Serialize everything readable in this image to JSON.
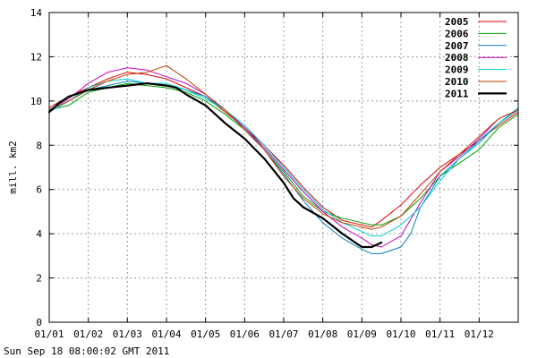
{
  "chart_data": {
    "type": "line",
    "title": "",
    "ylabel": "mill. km2",
    "xlabel": "",
    "ylim": [
      0,
      14
    ],
    "xlim": [
      1,
      13
    ],
    "yticks": [
      0,
      2,
      4,
      6,
      8,
      10,
      12,
      14
    ],
    "xticks": [
      1,
      2,
      3,
      4,
      5,
      6,
      7,
      8,
      9,
      10,
      11,
      12
    ],
    "xtick_labels": [
      "01/01",
      "01/02",
      "01/03",
      "01/04",
      "01/05",
      "01/06",
      "01/07",
      "01/08",
      "01/09",
      "01/10",
      "01/11",
      "01/12"
    ],
    "grid": true,
    "legend_position": "top-right",
    "series": [
      {
        "name": "2005",
        "color": "#e00000",
        "width": 1,
        "x": [
          1,
          1.5,
          2,
          2.5,
          3,
          3.5,
          4,
          4.5,
          5,
          5.5,
          6,
          6.5,
          7,
          7.5,
          8,
          8.5,
          9,
          9.25,
          9.5,
          10,
          10.5,
          11,
          11.5,
          12,
          12.5,
          13
        ],
        "y": [
          9.7,
          10.2,
          10.6,
          11.0,
          11.3,
          11.2,
          11.0,
          10.6,
          10.2,
          9.5,
          8.8,
          8.0,
          7.1,
          6.1,
          5.2,
          4.6,
          4.4,
          4.3,
          4.6,
          5.3,
          6.2,
          7.0,
          7.6,
          8.2,
          8.9,
          9.5
        ]
      },
      {
        "name": "2006",
        "color": "#00a000",
        "width": 1,
        "x": [
          1,
          1.5,
          2,
          2.5,
          3,
          3.5,
          4,
          4.5,
          5,
          5.5,
          6,
          6.5,
          7,
          7.5,
          8,
          8.5,
          9,
          9.25,
          9.5,
          10,
          10.5,
          11,
          11.5,
          12,
          12.5,
          13
        ],
        "y": [
          9.6,
          9.8,
          10.4,
          10.6,
          10.8,
          10.7,
          10.6,
          10.4,
          10.0,
          9.4,
          8.7,
          7.8,
          6.8,
          5.7,
          5.0,
          4.7,
          4.5,
          4.4,
          4.4,
          4.8,
          5.6,
          6.6,
          7.2,
          7.8,
          8.8,
          9.4
        ]
      },
      {
        "name": "2007",
        "color": "#0080c0",
        "width": 1,
        "x": [
          1,
          1.5,
          2,
          2.5,
          3,
          3.5,
          4,
          4.5,
          5,
          5.5,
          6,
          6.5,
          7,
          7.5,
          8,
          8.5,
          9,
          9.25,
          9.5,
          10,
          10.25,
          10.5,
          11,
          11.5,
          12,
          12.5,
          13
        ],
        "y": [
          9.5,
          10.0,
          10.5,
          10.7,
          10.9,
          10.8,
          10.7,
          10.5,
          10.2,
          9.6,
          8.8,
          7.8,
          6.7,
          5.5,
          4.5,
          3.8,
          3.3,
          3.1,
          3.1,
          3.4,
          4.0,
          5.2,
          6.6,
          7.4,
          8.2,
          9.0,
          9.6
        ]
      },
      {
        "name": "2008",
        "color": "#c000c0",
        "width": 1,
        "x": [
          1,
          1.5,
          2,
          2.5,
          3,
          3.5,
          4,
          4.5,
          5,
          5.5,
          6,
          6.5,
          7,
          7.5,
          8,
          8.5,
          9,
          9.25,
          9.5,
          10,
          10.5,
          11,
          11.5,
          12,
          12.5,
          13
        ],
        "y": [
          9.6,
          10.1,
          10.8,
          11.3,
          11.5,
          11.4,
          11.1,
          10.8,
          10.3,
          9.6,
          8.8,
          7.9,
          6.9,
          5.9,
          5.0,
          4.3,
          3.8,
          3.5,
          3.4,
          3.9,
          5.4,
          6.8,
          7.5,
          8.3,
          9.2,
          9.6
        ]
      },
      {
        "name": "2009",
        "color": "#00d0d0",
        "width": 1,
        "x": [
          1,
          1.5,
          2,
          2.5,
          3,
          3.5,
          4,
          4.5,
          5,
          5.5,
          6,
          6.5,
          7,
          7.5,
          8,
          8.5,
          9,
          9.25,
          9.5,
          10,
          10.5,
          11,
          11.5,
          12,
          12.5,
          13
        ],
        "y": [
          9.5,
          10.0,
          10.6,
          10.9,
          11.0,
          10.8,
          10.8,
          10.5,
          10.1,
          9.6,
          8.9,
          8.0,
          7.0,
          6.0,
          5.1,
          4.5,
          4.1,
          3.9,
          3.9,
          4.4,
          5.2,
          6.4,
          7.4,
          8.1,
          9.0,
          9.7
        ]
      },
      {
        "name": "2010",
        "color": "#c04000",
        "width": 1,
        "x": [
          1,
          1.5,
          2,
          2.5,
          3,
          3.5,
          4,
          4.5,
          5,
          5.5,
          6,
          6.5,
          7,
          7.5,
          8,
          8.5,
          9,
          9.25,
          9.5,
          10,
          10.5,
          11,
          11.5,
          12,
          12.5,
          13
        ],
        "y": [
          9.6,
          10.0,
          10.5,
          10.9,
          11.2,
          11.3,
          11.6,
          11.0,
          10.3,
          9.6,
          8.7,
          7.8,
          6.6,
          5.6,
          4.9,
          4.5,
          4.3,
          4.2,
          4.3,
          4.8,
          5.8,
          6.8,
          7.6,
          8.4,
          9.2,
          9.6
        ]
      },
      {
        "name": "2011",
        "color": "#000000",
        "width": 2.2,
        "x": [
          1,
          1.25,
          1.5,
          2,
          2.5,
          3,
          3.5,
          4,
          4.25,
          4.5,
          5,
          5.5,
          6,
          6.5,
          7,
          7.25,
          7.5,
          8,
          8.5,
          9,
          9.25,
          9.5
        ],
        "y": [
          9.5,
          9.9,
          10.2,
          10.5,
          10.6,
          10.7,
          10.8,
          10.7,
          10.6,
          10.3,
          9.8,
          9.0,
          8.3,
          7.4,
          6.3,
          5.6,
          5.2,
          4.7,
          4.0,
          3.4,
          3.4,
          3.6
        ]
      }
    ]
  },
  "footer": {
    "timestamp": "Sun Sep 18 08:00:02 GMT 2011"
  }
}
